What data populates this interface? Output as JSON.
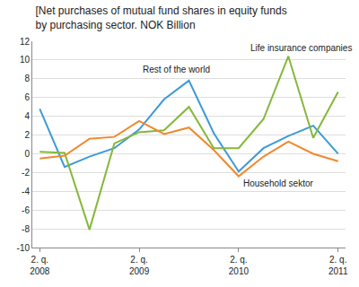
{
  "chart_data": {
    "type": "line",
    "title": "[Net purchases of mutual fund shares in equity funds by purchasing sector. NOK Billion",
    "categories": [
      "2. q. 2008",
      null,
      null,
      null,
      "2. q. 2009",
      null,
      null,
      null,
      "2. q. 2010",
      null,
      null,
      null,
      "2. q. 2011"
    ],
    "series": [
      {
        "name": "Rest of the world",
        "color": "#3d9ad6",
        "values": [
          4.8,
          -1.4,
          -0.3,
          0.6,
          2.6,
          5.8,
          7.8,
          2.2,
          -1.9,
          0.6,
          1.9,
          3.0,
          0.0
        ]
      },
      {
        "name": "Life insurance companies",
        "color": "#84b83a",
        "values": [
          0.2,
          0.1,
          -8.1,
          1.1,
          2.3,
          2.5,
          5.0,
          0.6,
          0.6,
          3.7,
          10.4,
          1.7,
          6.6
        ]
      },
      {
        "name": "Household sektor",
        "color": "#f0892e",
        "values": [
          -0.5,
          -0.2,
          1.6,
          1.8,
          3.5,
          2.1,
          2.8,
          0.4,
          -2.4,
          -0.3,
          1.3,
          0.0,
          -0.8
        ]
      }
    ],
    "ylim": [
      -10,
      12
    ],
    "yticks": [
      -10,
      -8,
      -6,
      -4,
      -2,
      0,
      2,
      4,
      6,
      8,
      10,
      12
    ],
    "grid": true
  }
}
